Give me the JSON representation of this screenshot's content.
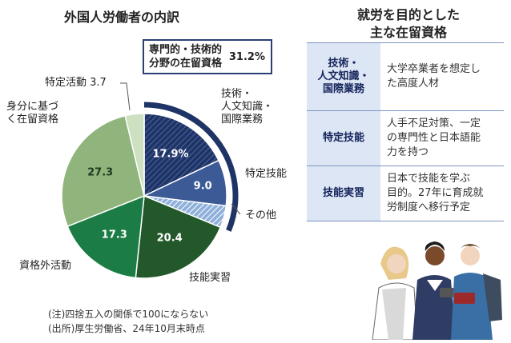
{
  "chart_data": {
    "type": "pie",
    "title": "外国人労働者の内訳",
    "slices": [
      {
        "label": "技術・人文知識・国際業務",
        "value": 17.9,
        "value_label": "17.9%",
        "color": "#1f3466",
        "hatched": true
      },
      {
        "label": "特定技能",
        "value": 9.0,
        "value_label": "9.0",
        "color": "#3b5a96"
      },
      {
        "label": "その他",
        "value": 4.3,
        "value_label": "",
        "color": "#8eb0db",
        "hatched": true
      },
      {
        "label": "技能実習",
        "value": 20.4,
        "value_label": "20.4",
        "color": "#23592a"
      },
      {
        "label": "資格外活動",
        "value": 17.3,
        "value_label": "17.3",
        "color": "#1c7c45"
      },
      {
        "label": "身分に基づく在留資格",
        "value": 27.3,
        "value_label": "27.3",
        "color": "#8fb57c"
      },
      {
        "label": "特定活動",
        "value": 3.7,
        "value_label": "3.7",
        "color": "#cde0c0"
      }
    ],
    "bracket": {
      "label": "専門的・技術的分野の在留資格",
      "value": "31.2%",
      "color": "#1f3466"
    }
  },
  "labels": {
    "gijutsu": "技術・\n人文知識・\n国際業務",
    "tokutei_gino": "特定技能",
    "sonota": "その他",
    "gino_jisshu": "技能実習",
    "shikakugai": "資格外活動",
    "mibun": "身分に基づ\nく在留資格",
    "tokutei_katsudo": "特定活動 3.7"
  },
  "callout": {
    "text": "専門的・技術的\n分野の在留資格",
    "pct": "31.2%"
  },
  "notes": {
    "note1": "(注)四捨五入の関係で100にならない",
    "note2": "(出所)厚生労働省、24年10月末時点"
  },
  "table": {
    "title": "就労を目的とした\n主な在留資格",
    "rows": [
      {
        "term": "技術・\n人文知識・\n国際業務",
        "desc": "大学卒業者を想定し\nた高度人材"
      },
      {
        "term": "特定技能",
        "desc": "人手不足対策、一定\nの専門性と日本語能\n力を持つ"
      },
      {
        "term": "技能実習",
        "desc": "日本で技能を学ぶ\n目的。27年に育成就\n労制度へ移行予定"
      }
    ]
  }
}
